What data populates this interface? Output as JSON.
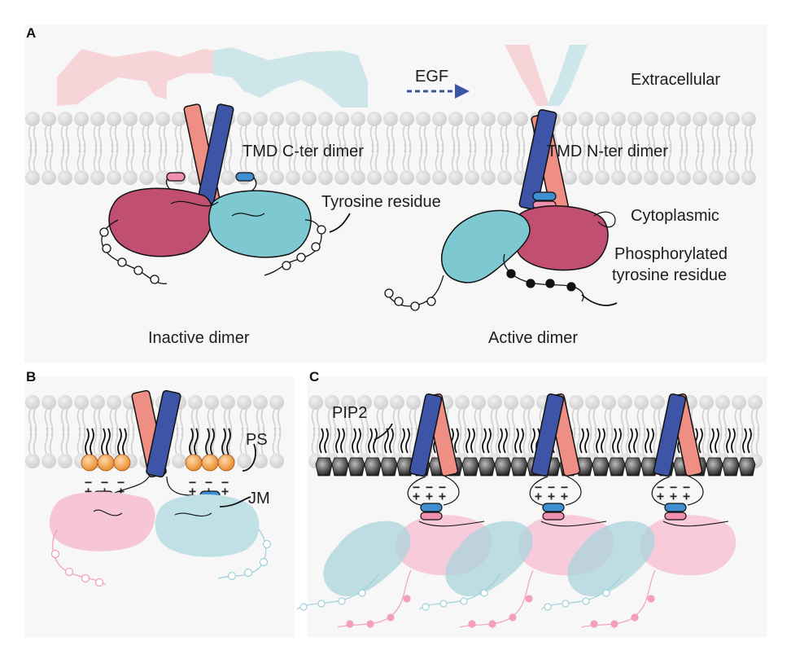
{
  "panels": {
    "a": {
      "letter": "A",
      "egf": "EGF",
      "extracellular": "Extracellular",
      "cytoplasmic": "Cytoplasmic",
      "tmd_cter": "TMD C-ter dimer",
      "tmd_nter": "TMD N-ter dimer",
      "tyrosine": "Tyrosine residue",
      "phospho_1": "Phosphorylated",
      "phospho_2": "tyrosine residue",
      "inactive": "Inactive dimer",
      "active": "Active dimer"
    },
    "b": {
      "letter": "B",
      "ps": "PS",
      "jm": "JM"
    },
    "c": {
      "letter": "C",
      "pip2": "PIP2"
    }
  },
  "charges": {
    "minus": "−",
    "plus": "+"
  },
  "colors": {
    "pink_helix": "#ef8f84",
    "blue_helix": "#3e55a7",
    "magenta_kinase": "#c04f72",
    "cyan_kinase": "#7ec8d1",
    "light_pink": "#f6c5d6",
    "light_cyan": "#bfe1e6",
    "lipid_head": "#d9d9d9",
    "ps_head": "#f0a050",
    "pip2_head": "#3b3b3b"
  },
  "icons": [
    "membrane-lipid",
    "ps-lipid-icon",
    "pip2-lipid-icon",
    "egf-arrow-icon",
    "tyrosine-bead"
  ]
}
